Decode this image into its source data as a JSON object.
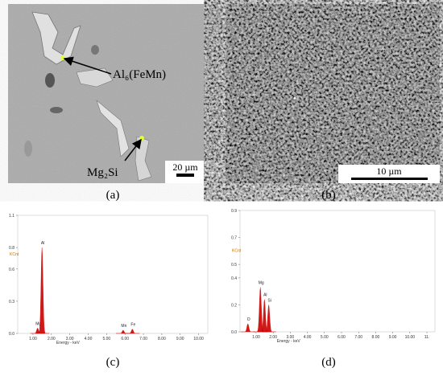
{
  "figure": {
    "panels": [
      {
        "label": "(a)"
      },
      {
        "label": "(b)"
      },
      {
        "label": "(c)"
      },
      {
        "label": "(d)"
      }
    ],
    "a": {
      "annotations": [
        "Al₆(FeMn)",
        "Mg₂Si"
      ],
      "scale_bar": "20 µm"
    },
    "b": {
      "scale_bar": "10 µm"
    }
  },
  "chart_data": [
    {
      "type": "line",
      "ylabel": "KCnt",
      "xlabel": "Energy - keV",
      "color": "#cc0000",
      "xlim": [
        0.17,
        10.5
      ],
      "ylim": [
        0,
        1.1
      ],
      "yticks": [
        {
          "value": 0,
          "label": "0.0"
        },
        0.3,
        0.6,
        0.8,
        1.1
      ],
      "xticks": [
        {
          "value": 1,
          "label": "1.00"
        },
        {
          "value": 2,
          "label": "2.00"
        },
        {
          "value": 3,
          "label": "3.00"
        },
        {
          "value": 4,
          "label": "4.00"
        },
        {
          "value": 5,
          "label": "5.00"
        },
        {
          "value": 6,
          "label": "6.00"
        },
        {
          "value": 7,
          "label": "7.00"
        },
        {
          "value": 8,
          "label": "8.00"
        },
        {
          "value": 9,
          "label": "9.00"
        },
        {
          "value": 10,
          "label": "10.00"
        }
      ],
      "peaks": [
        {
          "label": "Mg",
          "x": 1.25,
          "y": 0.05
        },
        {
          "label": "Al",
          "x": 1.49,
          "y": 0.8
        },
        {
          "label": "Mn",
          "x": 5.9,
          "y": 0.03
        },
        {
          "label": "Fe",
          "x": 6.4,
          "y": 0.04
        }
      ]
    },
    {
      "type": "line",
      "ylabel": "KCnt",
      "xlabel": "Energy - keV",
      "color": "#cc0000",
      "xlim": [
        0.06,
        11.47
      ],
      "ylim": [
        0,
        0.9
      ],
      "yticks": [
        {
          "value": 0,
          "label": "0.0"
        },
        0.2,
        0.4,
        0.5,
        0.7,
        0.9
      ],
      "xticks": [
        {
          "value": 1,
          "label": "1.00"
        },
        {
          "value": 2,
          "label": "2.00"
        },
        {
          "value": 3,
          "label": "3.00"
        },
        {
          "value": 4,
          "label": "4.00"
        },
        {
          "value": 5,
          "label": "5.00"
        },
        {
          "value": 6,
          "label": "6.00"
        },
        {
          "value": 7,
          "label": "7.00"
        },
        {
          "value": 8,
          "label": "8.00"
        },
        {
          "value": 9,
          "label": "9.00"
        },
        {
          "value": 10,
          "label": "10.00"
        },
        {
          "value": 11,
          "label": "11."
        }
      ],
      "peaks": [
        {
          "label": "O",
          "x": 0.52,
          "y": 0.06
        },
        {
          "label": "Mg",
          "x": 1.25,
          "y": 0.33
        },
        {
          "label": "Al",
          "x": 1.49,
          "y": 0.24
        },
        {
          "label": "Si",
          "x": 1.74,
          "y": 0.2
        }
      ]
    }
  ]
}
